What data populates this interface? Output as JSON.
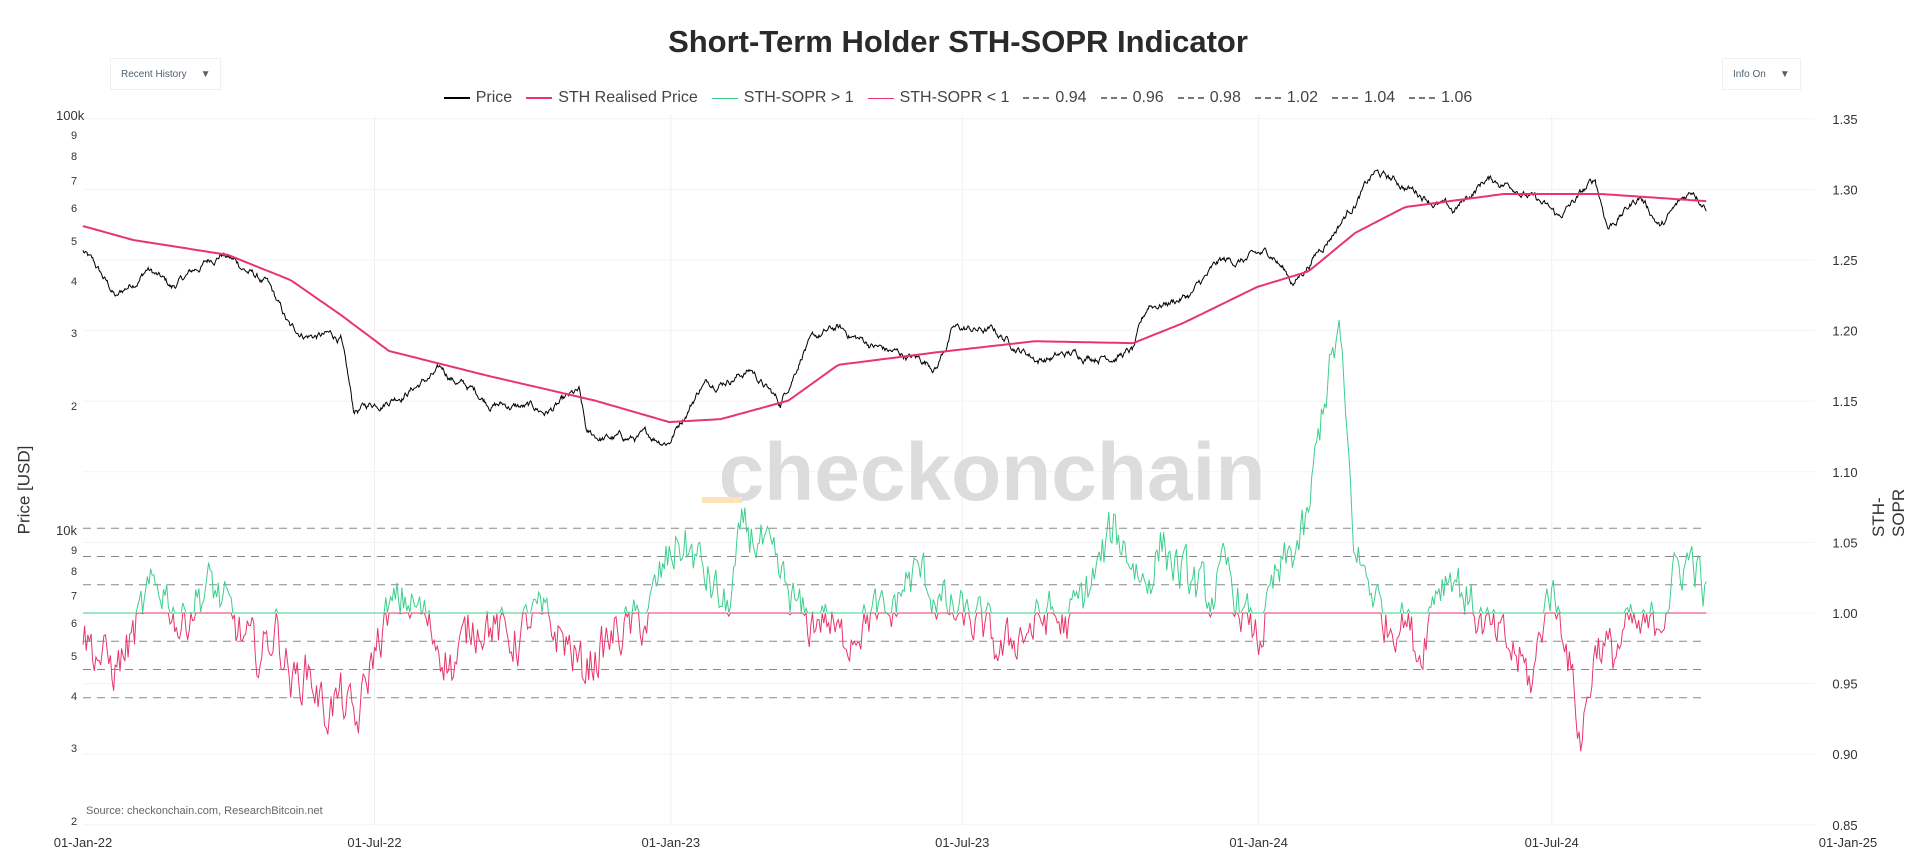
{
  "title": "Short-Term Holder STH-SOPR Indicator",
  "controls": {
    "range_select": "Recent History",
    "info_select": "Info On"
  },
  "source": "Source: checkonchain.com, ResearchBitcoin.net",
  "watermark": "checkonchain",
  "colors": {
    "price": "#000000",
    "sth_realised": "#e8366b",
    "sopr_up": "#3ecf8e",
    "sopr_down": "#e8366b",
    "ref": "#888888"
  },
  "chart_data": {
    "type": "line",
    "title": "Short-Term Holder STH-SOPR Indicator",
    "legend": [
      "Price",
      "STH Realised Price",
      "STH-SOPR > 1",
      "STH-SOPR < 1",
      "0.94",
      "0.96",
      "0.98",
      "1.02",
      "1.04",
      "1.06"
    ],
    "legend_position": "top-center",
    "xlabel": "",
    "x_ticks": [
      "01-Jan-22",
      "01-Jul-22",
      "01-Jan-23",
      "01-Jul-23",
      "01-Jan-24",
      "01-Jul-24",
      "01-Jan-25"
    ],
    "y_left": {
      "label": "Price [USD]",
      "scale": "log",
      "range": [
        2000,
        100000
      ],
      "ticks": [
        {
          "v": 100000,
          "t": "100k"
        },
        {
          "v": 90000,
          "t": "9"
        },
        {
          "v": 80000,
          "t": "8"
        },
        {
          "v": 70000,
          "t": "7"
        },
        {
          "v": 60000,
          "t": "6"
        },
        {
          "v": 50000,
          "t": "5"
        },
        {
          "v": 40000,
          "t": "4"
        },
        {
          "v": 30000,
          "t": "3"
        },
        {
          "v": 20000,
          "t": "2"
        },
        {
          "v": 10000,
          "t": "10k"
        },
        {
          "v": 9000,
          "t": "9"
        },
        {
          "v": 8000,
          "t": "8"
        },
        {
          "v": 7000,
          "t": "7"
        },
        {
          "v": 6000,
          "t": "6"
        },
        {
          "v": 5000,
          "t": "5"
        },
        {
          "v": 4000,
          "t": "4"
        },
        {
          "v": 3000,
          "t": "3"
        },
        {
          "v": 2000,
          "t": "2"
        }
      ]
    },
    "y_right": {
      "label": "STH-SOPR",
      "range": [
        0.85,
        1.35
      ],
      "ticks": [
        "1.35",
        "1.30",
        "1.25",
        "1.20",
        "1.15",
        "1.10",
        "1.05",
        "1.00",
        "0.95",
        "0.90",
        "0.85"
      ]
    },
    "reference_levels": [
      0.94,
      0.96,
      0.98,
      1.02,
      1.04,
      1.06
    ],
    "price": [
      [
        "2022-01-01",
        47000
      ],
      [
        "2022-01-22",
        36000
      ],
      [
        "2022-02-10",
        43000
      ],
      [
        "2022-02-25",
        38000
      ],
      [
        "2022-03-28",
        47000
      ],
      [
        "2022-04-25",
        39000
      ],
      [
        "2022-05-10",
        30000
      ],
      [
        "2022-06-10",
        29000
      ],
      [
        "2022-06-18",
        19000
      ],
      [
        "2022-07-10",
        21000
      ],
      [
        "2022-08-12",
        24000
      ],
      [
        "2022-09-10",
        20500
      ],
      [
        "2022-10-15",
        19200
      ],
      [
        "2022-11-05",
        21000
      ],
      [
        "2022-11-10",
        16500
      ],
      [
        "2022-12-31",
        16600
      ],
      [
        "2023-01-20",
        22500
      ],
      [
        "2023-02-20",
        24500
      ],
      [
        "2023-03-10",
        20000
      ],
      [
        "2023-03-25",
        28000
      ],
      [
        "2023-04-14",
        30300
      ],
      [
        "2023-05-15",
        27000
      ],
      [
        "2023-06-15",
        25000
      ],
      [
        "2023-06-25",
        30500
      ],
      [
        "2023-07-20",
        30000
      ],
      [
        "2023-08-17",
        26000
      ],
      [
        "2023-09-15",
        26500
      ],
      [
        "2023-10-15",
        27000
      ],
      [
        "2023-10-25",
        34500
      ],
      [
        "2023-11-20",
        37000
      ],
      [
        "2023-12-08",
        43500
      ],
      [
        "2024-01-10",
        46000
      ],
      [
        "2024-01-23",
        39500
      ],
      [
        "2024-02-15",
        52000
      ],
      [
        "2024-03-13",
        72000
      ],
      [
        "2024-04-15",
        64000
      ],
      [
        "2024-05-01",
        58000
      ],
      [
        "2024-05-21",
        70000
      ],
      [
        "2024-06-10",
        68000
      ],
      [
        "2024-07-05",
        56000
      ],
      [
        "2024-07-28",
        69000
      ],
      [
        "2024-08-05",
        54000
      ],
      [
        "2024-08-25",
        64000
      ],
      [
        "2024-09-07",
        54000
      ],
      [
        "2024-09-27",
        66000
      ],
      [
        "2024-10-05",
        62000
      ]
    ],
    "sth_realised_price": [
      [
        "2022-01-01",
        54000
      ],
      [
        "2022-02-01",
        50000
      ],
      [
        "2022-04-01",
        46000
      ],
      [
        "2022-05-10",
        40000
      ],
      [
        "2022-06-10",
        33000
      ],
      [
        "2022-07-10",
        27000
      ],
      [
        "2022-09-10",
        23500
      ],
      [
        "2022-11-15",
        20500
      ],
      [
        "2022-12-31",
        18200
      ],
      [
        "2023-02-01",
        18500
      ],
      [
        "2023-03-15",
        20500
      ],
      [
        "2023-04-15",
        25000
      ],
      [
        "2023-06-15",
        26800
      ],
      [
        "2023-08-15",
        28500
      ],
      [
        "2023-10-15",
        28200
      ],
      [
        "2023-11-15",
        31500
      ],
      [
        "2023-12-31",
        38500
      ],
      [
        "2024-02-01",
        42000
      ],
      [
        "2024-03-01",
        52000
      ],
      [
        "2024-04-01",
        60000
      ],
      [
        "2024-06-01",
        64500
      ],
      [
        "2024-08-01",
        64500
      ],
      [
        "2024-10-05",
        62000
      ]
    ],
    "sth_sopr_start": "2022-01-01",
    "sth_sopr_step_days": 10,
    "sth_sopr": [
      0.985,
      0.97,
      0.96,
      0.98,
      1.01,
      1.02,
      0.99,
      1.01,
      1.02,
      1.0,
      0.98,
      0.97,
      0.99,
      0.95,
      0.96,
      0.93,
      0.94,
      0.92,
      0.97,
      1.0,
      1.01,
      1.0,
      0.98,
      0.96,
      0.99,
      0.995,
      0.985,
      0.98,
      1.0,
      0.99,
      0.98,
      0.96,
      0.97,
      0.985,
      0.99,
      0.995,
      1.03,
      1.05,
      1.04,
      1.02,
      1.0,
      1.06,
      1.05,
      1.03,
      1.01,
      0.99,
      1.0,
      0.98,
      0.99,
      1.0,
      0.995,
      1.02,
      1.03,
      1.01,
      1.0,
      0.995,
      0.99,
      0.97,
      0.985,
      0.99,
      1.0,
      0.99,
      1.01,
      1.03,
      1.06,
      1.04,
      1.02,
      1.05,
      1.03,
      1.02,
      1.01,
      1.03,
      1.0,
      0.98,
      1.02,
      1.04,
      1.06,
      1.15,
      1.2,
      1.04,
      1.02,
      0.99,
      1.0,
      0.97,
      1.02,
      1.03,
      1.01,
      0.99,
      0.98,
      0.97,
      0.95,
      1.02,
      0.99,
      0.91,
      0.98,
      0.97,
      0.99,
      0.985,
      1.0,
      1.03,
      1.04,
      1.0
    ]
  }
}
